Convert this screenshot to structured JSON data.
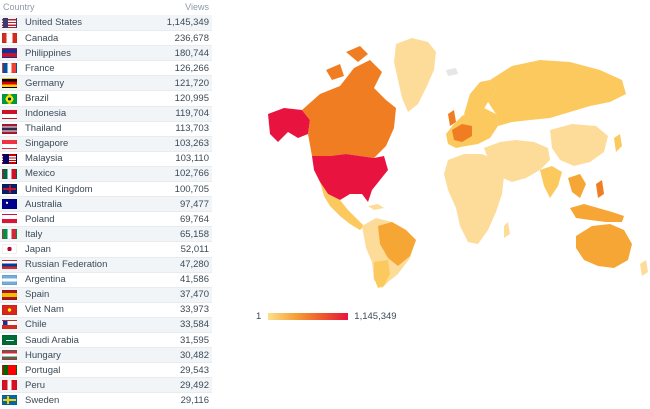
{
  "table": {
    "header": {
      "country": "Country",
      "views": "Views"
    },
    "rows": [
      {
        "name": "United States",
        "views": "1,145,349",
        "flag": "us-flag"
      },
      {
        "name": "Canada",
        "views": "236,678",
        "flag": "ca-flag"
      },
      {
        "name": "Philippines",
        "views": "180,744",
        "flag": "ph-flag"
      },
      {
        "name": "France",
        "views": "126,266",
        "flag": "fr-flag"
      },
      {
        "name": "Germany",
        "views": "121,720",
        "flag": "de-flag"
      },
      {
        "name": "Brazil",
        "views": "120,995",
        "flag": "br-flag"
      },
      {
        "name": "Indonesia",
        "views": "119,704",
        "flag": "id-flag"
      },
      {
        "name": "Thailand",
        "views": "113,703",
        "flag": "th-flag"
      },
      {
        "name": "Singapore",
        "views": "103,263",
        "flag": "sg-flag"
      },
      {
        "name": "Malaysia",
        "views": "103,110",
        "flag": "my-flag"
      },
      {
        "name": "Mexico",
        "views": "102,766",
        "flag": "mx-flag"
      },
      {
        "name": "United Kingdom",
        "views": "100,705",
        "flag": "gb-flag"
      },
      {
        "name": "Australia",
        "views": "97,477",
        "flag": "au-flag"
      },
      {
        "name": "Poland",
        "views": "69,764",
        "flag": "pl-flag"
      },
      {
        "name": "Italy",
        "views": "65,158",
        "flag": "it-flag"
      },
      {
        "name": "Japan",
        "views": "52,011",
        "flag": "jp-flag"
      },
      {
        "name": "Russian Federation",
        "views": "47,280",
        "flag": "ru-flag"
      },
      {
        "name": "Argentina",
        "views": "41,586",
        "flag": "ar-flag"
      },
      {
        "name": "Spain",
        "views": "37,470",
        "flag": "es-flag"
      },
      {
        "name": "Viet Nam",
        "views": "33,973",
        "flag": "vn-flag"
      },
      {
        "name": "Chile",
        "views": "33,584",
        "flag": "cl-flag"
      },
      {
        "name": "Saudi Arabia",
        "views": "31,595",
        "flag": "sa-flag"
      },
      {
        "name": "Hungary",
        "views": "30,482",
        "flag": "hu-flag"
      },
      {
        "name": "Portugal",
        "views": "29,543",
        "flag": "pt-flag"
      },
      {
        "name": "Peru",
        "views": "29,492",
        "flag": "pe-flag"
      },
      {
        "name": "Sweden",
        "views": "29,116",
        "flag": "se-flag"
      }
    ]
  },
  "legend": {
    "min": "1",
    "max": "1,145,349"
  },
  "colors": {
    "no_data": "#e6e6e6",
    "low": "#fddc9a",
    "mid_low": "#fbc95e",
    "mid": "#f6a635",
    "mid_high": "#f07d22",
    "high": "#e8143f"
  }
}
